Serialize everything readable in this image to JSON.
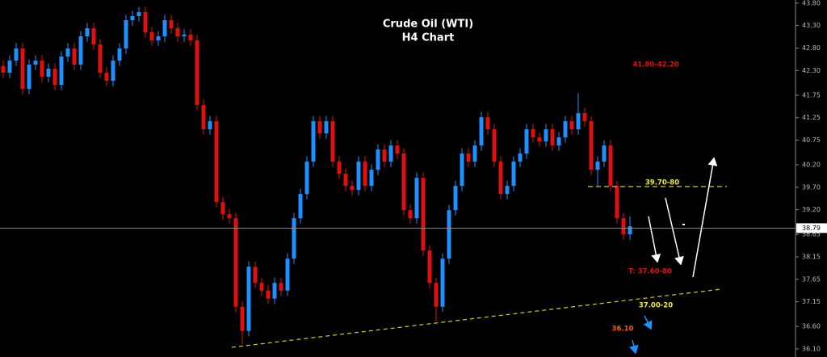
{
  "chart_data": {
    "type": "candlestick",
    "title": "Crude Oil (WTI)",
    "subtitle": "H4 Chart",
    "ylim": [
      35.92,
      43.87
    ],
    "yticks": [
      {
        "value": 43.8,
        "label": "43.80"
      },
      {
        "value": 43.3,
        "label": "43.30"
      },
      {
        "value": 42.8,
        "label": "42.80"
      },
      {
        "value": 42.3,
        "label": "42.30"
      },
      41.75,
      41.25,
      40.75,
      {
        "value": 40.2,
        "label": "40.20"
      },
      {
        "value": 39.7,
        "label": "39.70"
      },
      {
        "value": 39.2,
        "label": "39.20"
      },
      38.65,
      38.15,
      37.65,
      37.15,
      {
        "value": 36.6,
        "label": "36.60"
      },
      {
        "value": 36.1,
        "label": "36.10"
      }
    ],
    "up_color": "#1e90ff",
    "down_color": "#e01010",
    "current_price": 38.79,
    "open": [
      42.4,
      42.25,
      42.52,
      42.79,
      41.89,
      42.43,
      42.52,
      42.16,
      42.34,
      41.98,
      42.61,
      42.79,
      42.43,
      43.06,
      43.24,
      42.88,
      42.25,
      42.07,
      42.52,
      42.79,
      43.42,
      43.51,
      43.6,
      43.15,
      42.97,
      43.06,
      43.42,
      43.24,
      43.06,
      43.1,
      42.97,
      41.53,
      40.99,
      41.17,
      39.37,
      39.1,
      39.01,
      37.04,
      36.5,
      37.93,
      37.57,
      37.4,
      37.22,
      37.57,
      37.4,
      38.11,
      39.01,
      39.55,
      40.27,
      41.17,
      40.9,
      41.17,
      40.27,
      40.0,
      39.73,
      39.64,
      40.27,
      39.73,
      40.09,
      40.54,
      40.27,
      40.63,
      40.45,
      39.19,
      39.01,
      39.91,
      38.29,
      37.57,
      37.04,
      38.11,
      39.19,
      39.73,
      40.45,
      40.27,
      40.63,
      41.26,
      40.99,
      40.27,
      39.55,
      39.73,
      40.27,
      40.45,
      40.99,
      40.81,
      40.72,
      40.99,
      40.63,
      40.81,
      41.17,
      40.99,
      41.35,
      41.17,
      40.09,
      40.27,
      40.63,
      39.73,
      39.01,
      38.65
    ],
    "high": [
      42.52,
      42.64,
      42.91,
      42.91,
      42.55,
      42.64,
      42.64,
      42.46,
      42.46,
      42.73,
      42.91,
      42.91,
      43.18,
      43.36,
      43.36,
      43.0,
      42.37,
      42.64,
      42.91,
      43.54,
      43.63,
      43.72,
      43.72,
      43.27,
      43.18,
      43.54,
      43.54,
      43.36,
      43.22,
      43.22,
      43.09,
      41.65,
      41.29,
      41.29,
      39.49,
      39.22,
      39.13,
      37.16,
      38.05,
      38.05,
      37.69,
      37.52,
      37.69,
      37.69,
      38.23,
      39.13,
      39.67,
      40.39,
      41.29,
      41.29,
      41.29,
      41.29,
      40.39,
      40.12,
      39.85,
      40.39,
      40.39,
      40.21,
      40.66,
      40.66,
      40.75,
      40.75,
      40.57,
      39.31,
      40.03,
      40.03,
      38.41,
      37.69,
      38.23,
      39.31,
      39.85,
      40.57,
      40.57,
      40.75,
      41.38,
      41.38,
      41.11,
      40.39,
      39.85,
      40.39,
      40.57,
      41.11,
      41.11,
      40.93,
      41.11,
      41.11,
      40.93,
      41.29,
      41.29,
      41.8,
      41.47,
      41.29,
      40.39,
      40.75,
      40.75,
      39.85,
      39.13,
      39.05
    ],
    "low": [
      42.13,
      42.13,
      42.4,
      41.77,
      41.77,
      42.31,
      42.04,
      42.04,
      41.86,
      41.86,
      42.49,
      42.31,
      42.31,
      42.94,
      42.76,
      42.13,
      41.95,
      41.95,
      42.4,
      42.67,
      43.3,
      43.39,
      43.03,
      42.85,
      42.85,
      42.94,
      43.12,
      42.94,
      42.94,
      42.85,
      41.41,
      40.87,
      40.87,
      39.25,
      38.98,
      38.89,
      36.92,
      36.2,
      36.38,
      37.45,
      37.28,
      37.1,
      37.1,
      37.28,
      37.28,
      37.99,
      38.89,
      39.43,
      40.15,
      40.78,
      40.78,
      40.15,
      39.88,
      39.61,
      39.52,
      39.52,
      39.61,
      39.61,
      39.97,
      40.15,
      40.15,
      40.33,
      39.07,
      38.89,
      38.89,
      38.17,
      37.45,
      36.72,
      36.92,
      37.99,
      39.07,
      39.61,
      40.15,
      40.15,
      40.51,
      40.87,
      40.15,
      39.43,
      39.43,
      39.61,
      40.15,
      40.33,
      40.69,
      40.6,
      40.6,
      40.51,
      40.51,
      40.69,
      40.87,
      40.87,
      41.05,
      39.97,
      39.73,
      40.15,
      39.61,
      38.89,
      38.53,
      38.53
    ],
    "close": [
      42.25,
      42.52,
      42.79,
      41.89,
      42.43,
      42.52,
      42.16,
      42.34,
      41.98,
      42.61,
      42.79,
      42.43,
      43.06,
      43.24,
      42.88,
      42.25,
      42.07,
      42.52,
      42.79,
      43.42,
      43.51,
      43.6,
      43.15,
      42.97,
      43.06,
      43.42,
      43.24,
      43.06,
      43.1,
      42.97,
      41.53,
      40.99,
      41.17,
      39.37,
      39.1,
      39.01,
      37.04,
      36.5,
      37.93,
      37.57,
      37.4,
      37.22,
      37.57,
      37.4,
      38.11,
      39.01,
      39.55,
      40.27,
      41.17,
      40.9,
      41.17,
      40.27,
      40.0,
      39.73,
      39.64,
      40.27,
      39.73,
      40.09,
      40.54,
      40.27,
      40.63,
      40.45,
      39.19,
      39.01,
      39.91,
      38.29,
      37.57,
      37.04,
      38.11,
      39.19,
      39.73,
      40.45,
      40.27,
      40.63,
      41.26,
      40.99,
      40.27,
      39.55,
      39.73,
      40.27,
      40.45,
      40.99,
      40.81,
      40.72,
      40.99,
      40.63,
      40.81,
      41.17,
      40.99,
      41.35,
      41.17,
      40.09,
      40.27,
      40.63,
      39.73,
      39.01,
      38.65,
      38.83
    ],
    "annotations": [
      {
        "text": "41.80-42.20",
        "color": "#e01010"
      },
      {
        "text": "39.70-80",
        "color": "#f5e642"
      },
      {
        "text": "T: 37.60-80",
        "color": "#e01010"
      },
      {
        "text": "37.00-20",
        "color": "#f5e642"
      },
      {
        "text": "36.10",
        "color": "#ff5a14"
      }
    ]
  }
}
